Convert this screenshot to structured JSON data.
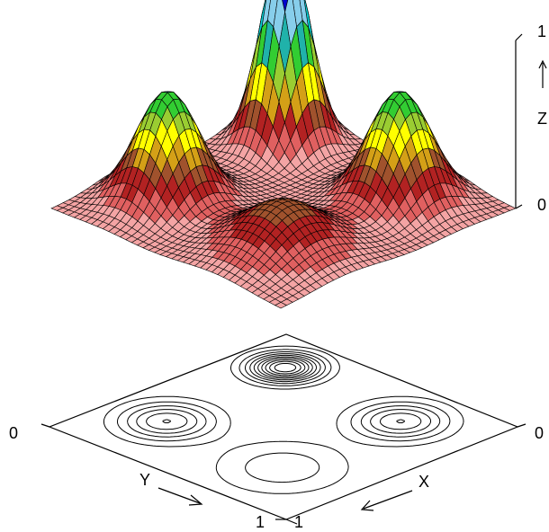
{
  "chart_data": {
    "type": "surface",
    "title": "",
    "subtitle": "",
    "z_function": "Gaussian peaks: tall narrow peak at back corner, two medium peaks left/right, low broad bump at front",
    "peaks": [
      {
        "x": 0.18,
        "y": 0.18,
        "height": 1.0,
        "width": 0.075
      },
      {
        "x": 0.22,
        "y": 0.72,
        "height": 0.55,
        "width": 0.1
      },
      {
        "x": 0.72,
        "y": 0.22,
        "height": 0.55,
        "width": 0.1
      },
      {
        "x": 0.72,
        "y": 0.72,
        "height": 0.25,
        "width": 0.14
      }
    ],
    "grid_resolution": 40,
    "colormap": [
      "#f4a4a4",
      "#e06060",
      "#b22222",
      "#a0522d",
      "#d4a017",
      "#ffff00",
      "#9acd32",
      "#32cd32",
      "#20b2aa",
      "#00ced1",
      "#87ceeb",
      "#1e90ff",
      "#0000cd",
      "#8a2be2",
      "#da70d6"
    ],
    "contour_levels": 10,
    "z_axis": {
      "label": "Z",
      "tick_min": "0",
      "tick_max": "1",
      "range": [
        0,
        1
      ]
    },
    "x_axis": {
      "label": "X",
      "tick_left": "0",
      "tick_right": "1",
      "range": [
        0,
        1
      ]
    },
    "y_axis": {
      "label": "Y",
      "tick_left": "0",
      "tick_right": "1",
      "range": [
        0,
        1
      ]
    }
  },
  "labels": {
    "z_top": "1",
    "z_bottom": "0",
    "z_name": "Z",
    "contour_left_zero": "0",
    "contour_right_zero": "0",
    "y_name": "Y",
    "x_name": "X",
    "bottom_one_y": "1",
    "bottom_one_x": "1"
  }
}
